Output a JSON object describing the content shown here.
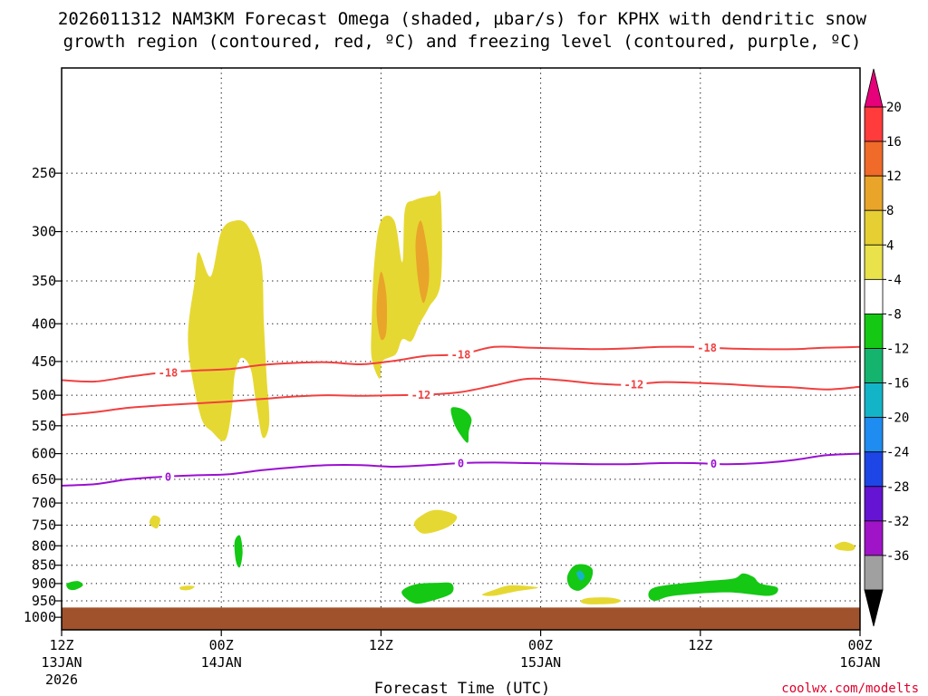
{
  "chart_data": {
    "type": "time-height",
    "title_lines": [
      "2026011312 NAM3KM Forecast Omega (shaded, µbar/s) for KPHX with dendritic snow",
      "growth region (contoured, red, ºC) and freezing level (contoured, purple, ºC)"
    ],
    "xlabel": "Forecast Time (UTC)",
    "ylabel": "",
    "credit": "coolwx.com/modelts",
    "xlim": [
      0,
      60
    ],
    "ylim": [
      1040,
      180
    ],
    "x_ticks": [
      {
        "hour": 0,
        "line1": "12Z",
        "line2": "13JAN",
        "line3": "2026"
      },
      {
        "hour": 12,
        "line1": "00Z",
        "line2": "14JAN",
        "line3": ""
      },
      {
        "hour": 24,
        "line1": "12Z",
        "line2": "",
        "line3": ""
      },
      {
        "hour": 36,
        "line1": "00Z",
        "line2": "15JAN",
        "line3": ""
      },
      {
        "hour": 48,
        "line1": "12Z",
        "line2": "",
        "line3": ""
      },
      {
        "hour": 60,
        "line1": "00Z",
        "line2": "16JAN",
        "line3": ""
      }
    ],
    "y_ticks": [
      250,
      300,
      350,
      400,
      450,
      500,
      550,
      600,
      650,
      700,
      750,
      800,
      850,
      900,
      950,
      1000
    ],
    "surface_pressure": 970,
    "surface_color": "#a0522d",
    "colorbar": {
      "levels": [
        "20",
        "16",
        "12",
        "8",
        "4",
        "-4",
        "-8",
        "-12",
        "-16",
        "-20",
        "-24",
        "-28",
        "-32",
        "-36"
      ],
      "colors": [
        "#ff3b3b",
        "#f06a2a",
        "#e8a52a",
        "#e6cf32",
        "#e9e24a",
        "#ffffff",
        "#14c814",
        "#14b46e",
        "#14b4c8",
        "#1e8cf0",
        "#1e46e6",
        "#6414d2",
        "#a014c8",
        "#a0a0a0"
      ],
      "top_color": "#e6007a",
      "bottom_color": "#000000"
    },
    "contours": [
      {
        "name": "dgz-minus18",
        "label": "-18",
        "color": "#f04040",
        "points": [
          [
            0,
            477
          ],
          [
            2.5,
            479
          ],
          [
            5,
            472
          ],
          [
            7.5,
            466
          ],
          [
            10,
            463
          ],
          [
            12.5,
            461
          ],
          [
            15,
            455
          ],
          [
            17.5,
            452
          ],
          [
            20,
            451
          ],
          [
            22.5,
            454
          ],
          [
            25,
            449
          ],
          [
            27.5,
            442
          ],
          [
            30,
            440
          ],
          [
            32.5,
            430
          ],
          [
            35,
            431
          ],
          [
            37.5,
            432
          ],
          [
            40,
            433
          ],
          [
            42.5,
            432
          ],
          [
            45,
            430
          ],
          [
            47.5,
            430
          ],
          [
            50,
            432
          ],
          [
            52.5,
            433
          ],
          [
            55,
            433
          ],
          [
            57.5,
            431
          ],
          [
            60,
            430
          ]
        ],
        "label_hours": [
          8,
          30,
          48.5
        ]
      },
      {
        "name": "dgz-minus12",
        "label": "-12",
        "color": "#f04040",
        "points": [
          [
            0,
            532
          ],
          [
            2.5,
            527
          ],
          [
            5,
            520
          ],
          [
            7.5,
            516
          ],
          [
            10,
            513
          ],
          [
            12.5,
            510
          ],
          [
            15,
            506
          ],
          [
            17.5,
            502
          ],
          [
            20,
            500
          ],
          [
            22.5,
            501
          ],
          [
            25,
            500
          ],
          [
            27.5,
            499
          ],
          [
            30,
            495
          ],
          [
            32.5,
            485
          ],
          [
            35,
            475
          ],
          [
            37.5,
            477
          ],
          [
            40,
            482
          ],
          [
            42.5,
            484
          ],
          [
            45,
            480
          ],
          [
            47.5,
            481
          ],
          [
            50,
            483
          ],
          [
            52.5,
            486
          ],
          [
            55,
            488
          ],
          [
            57.5,
            491
          ],
          [
            60,
            487
          ]
        ],
        "label_hours": [
          27,
          43
        ]
      },
      {
        "name": "freezing-level-0",
        "label": "0",
        "color": "#9a10d0",
        "points": [
          [
            0,
            663
          ],
          [
            2.5,
            660
          ],
          [
            5,
            650
          ],
          [
            7.5,
            645
          ],
          [
            10,
            642
          ],
          [
            12.5,
            640
          ],
          [
            15,
            632
          ],
          [
            17.5,
            626
          ],
          [
            20,
            622
          ],
          [
            22.5,
            622
          ],
          [
            25,
            625
          ],
          [
            27.5,
            622
          ],
          [
            30,
            618
          ],
          [
            32.5,
            617
          ],
          [
            35,
            618
          ],
          [
            37.5,
            619
          ],
          [
            40,
            620
          ],
          [
            42.5,
            620
          ],
          [
            45,
            618
          ],
          [
            47.5,
            618
          ],
          [
            50,
            620
          ],
          [
            52.5,
            618
          ],
          [
            55,
            612
          ],
          [
            57.5,
            603
          ],
          [
            60,
            600
          ]
        ],
        "label_hours": [
          8,
          30,
          49
        ]
      }
    ],
    "omega_regions": [
      {
        "name": "upward-omega-core-1",
        "range": "4 to 8",
        "color": "#e6d832",
        "points": [
          [
            9.5,
            425
          ],
          [
            10,
            350
          ],
          [
            10.3,
            320
          ],
          [
            11.2,
            345
          ],
          [
            12,
            300
          ],
          [
            13,
            290
          ],
          [
            14,
            295
          ],
          [
            15,
            330
          ],
          [
            15.2,
            400
          ],
          [
            15.4,
            470
          ],
          [
            15.6,
            545
          ],
          [
            15.1,
            570
          ],
          [
            14.6,
            510
          ],
          [
            14.2,
            460
          ],
          [
            13.5,
            445
          ],
          [
            13,
            470
          ],
          [
            12.8,
            520
          ],
          [
            12.3,
            575
          ],
          [
            11.3,
            560
          ],
          [
            10.4,
            530
          ]
        ]
      },
      {
        "name": "upward-omega-core-2",
        "range": "4 to 8",
        "color": "#e6d832",
        "points": [
          [
            23.3,
            445
          ],
          [
            23.3,
            400
          ],
          [
            23.5,
            330
          ],
          [
            24,
            290
          ],
          [
            25,
            290
          ],
          [
            25.6,
            330
          ],
          [
            25.8,
            280
          ],
          [
            26.5,
            272
          ],
          [
            28,
            268
          ],
          [
            28.5,
            270
          ],
          [
            28.5,
            350
          ],
          [
            27.6,
            380
          ],
          [
            26.9,
            400
          ],
          [
            26.3,
            422
          ],
          [
            25.6,
            420
          ],
          [
            25.1,
            440
          ],
          [
            24.1,
            450
          ],
          [
            23.9,
            475
          ]
        ]
      },
      {
        "name": "omega-max-8-to-12-a",
        "range": "8 to 12",
        "color": "#e8a52a",
        "points": [
          [
            23.7,
            370
          ],
          [
            24,
            340
          ],
          [
            24.4,
            365
          ],
          [
            24.4,
            410
          ],
          [
            24,
            420
          ],
          [
            23.7,
            395
          ]
        ]
      },
      {
        "name": "omega-max-8-to-12-b",
        "range": "8 to 12",
        "color": "#e8a52a",
        "points": [
          [
            26.6,
            310
          ],
          [
            27,
            290
          ],
          [
            27.5,
            320
          ],
          [
            27.6,
            350
          ],
          [
            27.2,
            375
          ],
          [
            26.8,
            350
          ]
        ]
      },
      {
        "name": "omega-blob-a",
        "range": "4 to 8",
        "color": "#e6d832",
        "points": [
          [
            6.6,
            742
          ],
          [
            6.9,
            728
          ],
          [
            7.4,
            735
          ],
          [
            7.2,
            757
          ],
          [
            6.8,
            753
          ]
        ]
      },
      {
        "name": "omega-blob-b",
        "range": "4 to 8",
        "color": "#e6d832",
        "points": [
          [
            26.5,
            745
          ],
          [
            27.5,
            720
          ],
          [
            28.5,
            716
          ],
          [
            29.7,
            730
          ],
          [
            29,
            755
          ],
          [
            27.2,
            770
          ]
        ]
      },
      {
        "name": "omega-blob-c",
        "range": "4 to 8",
        "color": "#e6d832",
        "points": [
          [
            8.9,
            910
          ],
          [
            9.5,
            906
          ],
          [
            10,
            909
          ],
          [
            9.6,
            918
          ],
          [
            9,
            918
          ]
        ]
      },
      {
        "name": "omega-blob-d",
        "range": "4 to 8",
        "color": "#e6d832",
        "points": [
          [
            31.6,
            932
          ],
          [
            32.5,
            918
          ],
          [
            33.5,
            906
          ],
          [
            34.6,
            906
          ],
          [
            35.8,
            912
          ],
          [
            34.2,
            922
          ],
          [
            32.5,
            935
          ]
        ]
      },
      {
        "name": "omega-blob-e",
        "range": "4 to 8",
        "color": "#e6d832",
        "points": [
          [
            39,
            952
          ],
          [
            39.5,
            942
          ],
          [
            41,
            940
          ],
          [
            42,
            948
          ],
          [
            41.5,
            958
          ],
          [
            39.6,
            960
          ]
        ]
      },
      {
        "name": "omega-blob-f",
        "range": "4 to 8",
        "color": "#e6d832",
        "points": [
          [
            58.1,
            800
          ],
          [
            58.8,
            790
          ],
          [
            59.6,
            800
          ],
          [
            59.4,
            812
          ],
          [
            58.4,
            810
          ]
        ]
      },
      {
        "name": "downward-blob-a",
        "range": "-4 to -8",
        "color": "#14c814",
        "points": [
          [
            0.4,
            900
          ],
          [
            1.2,
            893
          ],
          [
            1.6,
            905
          ],
          [
            1,
            918
          ],
          [
            0.5,
            915
          ]
        ]
      },
      {
        "name": "downward-blob-b",
        "range": "-4 to -8",
        "color": "#14c814",
        "points": [
          [
            13,
            790
          ],
          [
            13.4,
            775
          ],
          [
            13.6,
            815
          ],
          [
            13.4,
            855
          ],
          [
            13.1,
            840
          ]
        ]
      },
      {
        "name": "downward-blob-c",
        "range": "-4 to -8",
        "color": "#14c814",
        "points": [
          [
            29.3,
            520
          ],
          [
            30.2,
            523
          ],
          [
            30.8,
            538
          ],
          [
            30.6,
            560
          ],
          [
            30.5,
            580
          ],
          [
            29.8,
            560
          ],
          [
            29.4,
            540
          ]
        ]
      },
      {
        "name": "downward-blob-d",
        "range": "-4 to -8",
        "color": "#14c814",
        "points": [
          [
            25.6,
            920
          ],
          [
            26.6,
            902
          ],
          [
            28.3,
            898
          ],
          [
            29.3,
            900
          ],
          [
            29.3,
            928
          ],
          [
            27.8,
            950
          ],
          [
            26.6,
            958
          ],
          [
            25.8,
            940
          ]
        ]
      },
      {
        "name": "downward-blob-e",
        "range": "-4 to -8",
        "color": "#14c814",
        "points": [
          [
            38,
            880
          ],
          [
            38.5,
            852
          ],
          [
            39.3,
            848
          ],
          [
            39.9,
            862
          ],
          [
            39.7,
            895
          ],
          [
            38.9,
            920
          ],
          [
            38.2,
            910
          ]
        ]
      },
      {
        "name": "downward-blob-f",
        "range": "-4 to -8",
        "color": "#14c814",
        "points": [
          [
            44.1,
            935
          ],
          [
            44.5,
            912
          ],
          [
            46.5,
            900
          ],
          [
            48.5,
            893
          ],
          [
            50.5,
            886
          ],
          [
            51.2,
            872
          ],
          [
            52,
            882
          ],
          [
            52.5,
            900
          ],
          [
            53.8,
            912
          ],
          [
            53.2,
            935
          ],
          [
            50,
            925
          ],
          [
            46,
            935
          ],
          [
            44.6,
            950
          ]
        ]
      },
      {
        "name": "downward-core-8-to-12",
        "range": "-8 to -12",
        "color": "#14b4c8",
        "points": [
          [
            38.7,
            872
          ],
          [
            39,
            865
          ],
          [
            39.3,
            880
          ],
          [
            39,
            892
          ]
        ]
      }
    ]
  }
}
